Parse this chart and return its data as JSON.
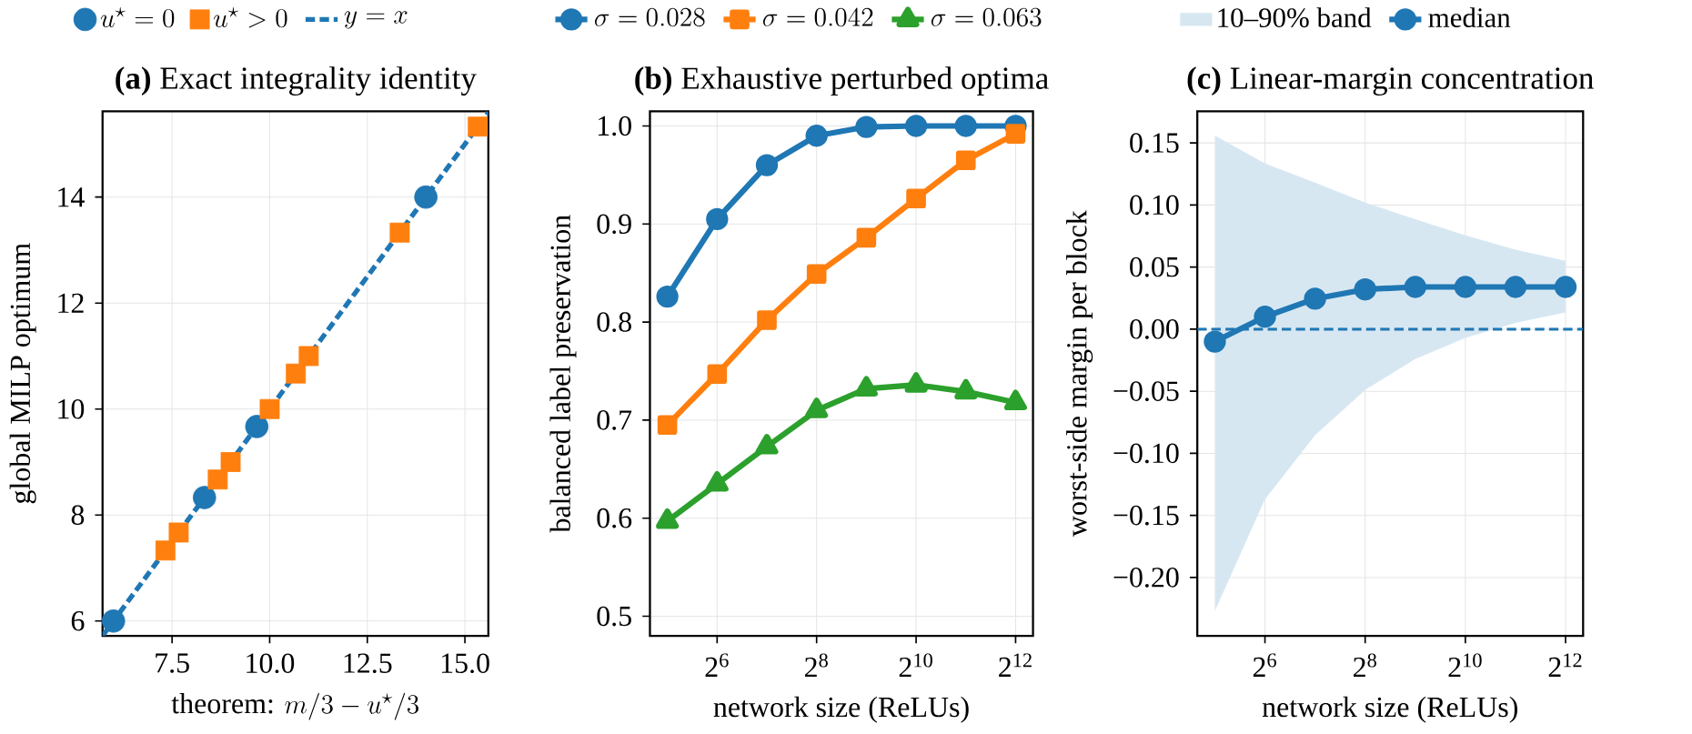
{
  "chart_data": [
    {
      "type": "scatter",
      "title": "**(a)** Exact integrality identity",
      "xlabel": "\\mbox{theorem: }m/3 - u^\\star/3",
      "ylabel": "global MILP optimum",
      "xlim": [
        5.72,
        15.6
      ],
      "ylim": [
        5.72,
        15.62
      ],
      "xticks": [
        {
          "value": 7.5,
          "label": "7.5"
        },
        {
          "value": 10,
          "label": "10.0"
        },
        {
          "value": 12.5,
          "label": "12.5"
        },
        {
          "value": 15,
          "label": "15.0"
        }
      ],
      "yticks": [
        6,
        8,
        10,
        12,
        14
      ],
      "grid": true,
      "legend": "top",
      "series": [
        {
          "name": "u^\\star = 0",
          "type": "scatter",
          "marker": "circle",
          "color": "#1f77b4",
          "x": [
            6,
            8.33,
            9.67,
            14
          ],
          "values": [
            6,
            8.33,
            9.67,
            14
          ]
        },
        {
          "name": "u^\\star > 0",
          "type": "scatter",
          "marker": "square",
          "color": "#ff7f0e",
          "x": [
            7.33,
            7.67,
            8.67,
            9,
            10,
            10.67,
            11,
            13.33,
            15.33
          ],
          "values": [
            7.33,
            7.67,
            8.67,
            9,
            10,
            10.67,
            11,
            13.33,
            15.33
          ]
        },
        {
          "name": "y = x",
          "type": "line",
          "line_style": "dashed",
          "color": "#1f77b4",
          "x": [
            5.72,
            15.6
          ],
          "values": [
            5.72,
            15.6
          ]
        }
      ]
    },
    {
      "type": "line",
      "title": "**(b)** Exhaustive perturbed optima",
      "xlabel": "network size (ReLUs)",
      "ylabel": "balanced label preservation",
      "log": "x",
      "x": [
        32,
        64,
        128,
        256,
        512,
        1024,
        2048,
        4096
      ],
      "xlim": [
        25.1,
        5220
      ],
      "ylim": [
        0.48,
        1.015
      ],
      "xticks": [
        {
          "value": 64,
          "label": "2$^{6}$"
        },
        {
          "value": 256,
          "label": "2$^{8}$"
        },
        {
          "value": 1024,
          "label": "2$^{10}$"
        },
        {
          "value": 4096,
          "label": "2$^{12}$"
        }
      ],
      "yticks": [
        {
          "value": 0.5,
          "label": "0.5"
        },
        {
          "value": 0.6,
          "label": "0.6"
        },
        {
          "value": 0.7,
          "label": "0.7"
        },
        {
          "value": 0.8,
          "label": "0.8"
        },
        {
          "value": 0.9,
          "label": "0.9"
        },
        {
          "value": 1.0,
          "label": "1.0"
        }
      ],
      "grid": true,
      "legend": "top",
      "series": [
        {
          "name": "\\sigma = 0.028",
          "marker": "circle",
          "color": "#1f77b4",
          "values": [
            0.826,
            0.905,
            0.96,
            0.99,
            0.999,
            1.0,
            1.0,
            1.0
          ]
        },
        {
          "name": "\\sigma = 0.042",
          "marker": "square",
          "color": "#ff7f0e",
          "values": [
            0.695,
            0.747,
            0.802,
            0.849,
            0.886,
            0.926,
            0.965,
            0.992
          ]
        },
        {
          "name": "\\sigma = 0.063",
          "marker": "triangle",
          "color": "#2ca02c",
          "values": [
            0.597,
            0.635,
            0.673,
            0.71,
            0.732,
            0.736,
            0.729,
            0.718
          ]
        }
      ]
    },
    {
      "type": "line",
      "title": "**(c)** Linear-margin concentration",
      "xlabel": "network size (ReLUs)",
      "ylabel": "worst-side margin per block",
      "log": "x",
      "x": [
        32,
        64,
        128,
        256,
        512,
        1024,
        2048,
        4096
      ],
      "xlim": [
        25.1,
        5220
      ],
      "ylim": [
        -0.247,
        0.1755
      ],
      "xticks": [
        {
          "value": 64,
          "label": "2$^{6}$"
        },
        {
          "value": 256,
          "label": "2$^{8}$"
        },
        {
          "value": 1024,
          "label": "2$^{10}$"
        },
        {
          "value": 4096,
          "label": "2$^{12}$"
        }
      ],
      "yticks": [
        {
          "value": -0.2,
          "label": "−0.20"
        },
        {
          "value": -0.15,
          "label": "−0.15"
        },
        {
          "value": -0.1,
          "label": "−0.10"
        },
        {
          "value": -0.05,
          "label": "−0.05"
        },
        {
          "value": 0,
          "label": "0.00"
        },
        {
          "value": 0.05,
          "label": "0.05"
        },
        {
          "value": 0.1,
          "label": "0.10"
        },
        {
          "value": 0.15,
          "label": "0.15"
        }
      ],
      "grid": true,
      "legend": "top",
      "annotations": [
        "10–90% band"
      ],
      "ref_lines": [
        {
          "axis": "y",
          "value": 0,
          "color": "#1f77b4",
          "line_style": "dashed"
        }
      ],
      "series": [
        {
          "name": "median",
          "marker": "circle",
          "color": "#1f77b4",
          "values": [
            -0.01,
            0.01,
            0.0245,
            0.032,
            0.034,
            0.034,
            0.034,
            0.034
          ],
          "lower": [
            -0.227,
            -0.137,
            -0.0855,
            -0.049,
            -0.024,
            -0.007,
            0.005,
            0.0135
          ],
          "upper": [
            0.156,
            0.1335,
            0.118,
            0.102,
            0.0886,
            0.0755,
            0.064,
            0.055
          ]
        }
      ]
    }
  ]
}
